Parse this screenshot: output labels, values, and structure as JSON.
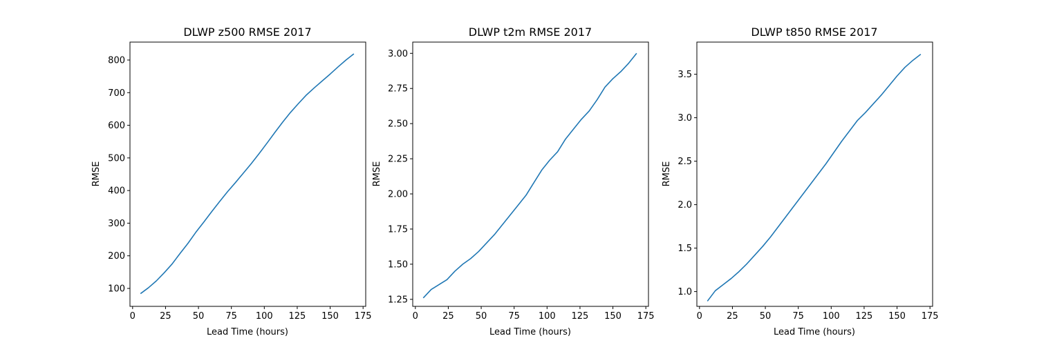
{
  "figure": {
    "background": "#ffffff",
    "line_color": "#1f77b4",
    "axis_color": "#000000"
  },
  "chart_data": [
    {
      "type": "line",
      "title": "DLWP z500 RMSE 2017",
      "xlabel": "Lead Time (hours)",
      "ylabel": "RMSE",
      "xlim": [
        -2,
        177
      ],
      "ylim": [
        45,
        855
      ],
      "xticks": [
        0,
        25,
        50,
        75,
        100,
        125,
        150,
        175
      ],
      "yticks": [
        100,
        200,
        300,
        400,
        500,
        600,
        700,
        800
      ],
      "ytick_labels": [
        "100",
        "200",
        "300",
        "400",
        "500",
        "600",
        "700",
        "800"
      ],
      "grid": false,
      "x": [
        6,
        12,
        18,
        24,
        30,
        36,
        42,
        48,
        54,
        60,
        66,
        72,
        78,
        84,
        90,
        96,
        102,
        108,
        114,
        120,
        126,
        132,
        138,
        144,
        150,
        156,
        162,
        168
      ],
      "y": [
        84,
        102,
        123,
        148,
        175,
        207,
        238,
        272,
        303,
        335,
        366,
        396,
        424,
        453,
        482,
        513,
        545,
        578,
        610,
        640,
        667,
        693,
        715,
        736,
        757,
        779,
        800,
        819
      ]
    },
    {
      "type": "line",
      "title": "DLWP t2m RMSE 2017",
      "xlabel": "Lead Time (hours)",
      "ylabel": "RMSE",
      "xlim": [
        -2,
        177
      ],
      "ylim": [
        1.2,
        3.08
      ],
      "xticks": [
        0,
        25,
        50,
        75,
        100,
        125,
        150,
        175
      ],
      "yticks": [
        1.25,
        1.5,
        1.75,
        2.0,
        2.25,
        2.5,
        2.75,
        3.0
      ],
      "ytick_labels": [
        "1.25",
        "1.50",
        "1.75",
        "2.00",
        "2.25",
        "2.50",
        "2.75",
        "3.00"
      ],
      "grid": false,
      "x": [
        6,
        12,
        18,
        24,
        30,
        36,
        42,
        48,
        54,
        60,
        66,
        72,
        78,
        84,
        90,
        96,
        102,
        108,
        114,
        120,
        126,
        132,
        138,
        144,
        150,
        156,
        162,
        168
      ],
      "y": [
        1.26,
        1.32,
        1.355,
        1.39,
        1.45,
        1.5,
        1.54,
        1.59,
        1.65,
        1.71,
        1.78,
        1.85,
        1.92,
        1.99,
        2.08,
        2.17,
        2.24,
        2.3,
        2.39,
        2.46,
        2.53,
        2.59,
        2.67,
        2.76,
        2.82,
        2.87,
        2.93,
        3.0
      ]
    },
    {
      "type": "line",
      "title": "DLWP t850 RMSE 2017",
      "xlabel": "Lead Time (hours)",
      "ylabel": "RMSE",
      "xlim": [
        -2,
        177
      ],
      "ylim": [
        0.83,
        3.87
      ],
      "xticks": [
        0,
        25,
        50,
        75,
        100,
        125,
        150,
        175
      ],
      "yticks": [
        1.0,
        1.5,
        2.0,
        2.5,
        3.0,
        3.5
      ],
      "ytick_labels": [
        "1.0",
        "1.5",
        "2.0",
        "2.5",
        "3.0",
        "3.5"
      ],
      "grid": false,
      "x": [
        6,
        12,
        18,
        24,
        30,
        36,
        42,
        48,
        54,
        60,
        66,
        72,
        78,
        84,
        90,
        96,
        102,
        108,
        114,
        120,
        126,
        132,
        138,
        144,
        150,
        156,
        162,
        168
      ],
      "y": [
        0.89,
        1.01,
        1.08,
        1.15,
        1.23,
        1.32,
        1.42,
        1.52,
        1.63,
        1.75,
        1.87,
        1.99,
        2.11,
        2.23,
        2.35,
        2.47,
        2.6,
        2.73,
        2.85,
        2.97,
        3.06,
        3.16,
        3.26,
        3.37,
        3.48,
        3.58,
        3.66,
        3.73
      ]
    }
  ]
}
